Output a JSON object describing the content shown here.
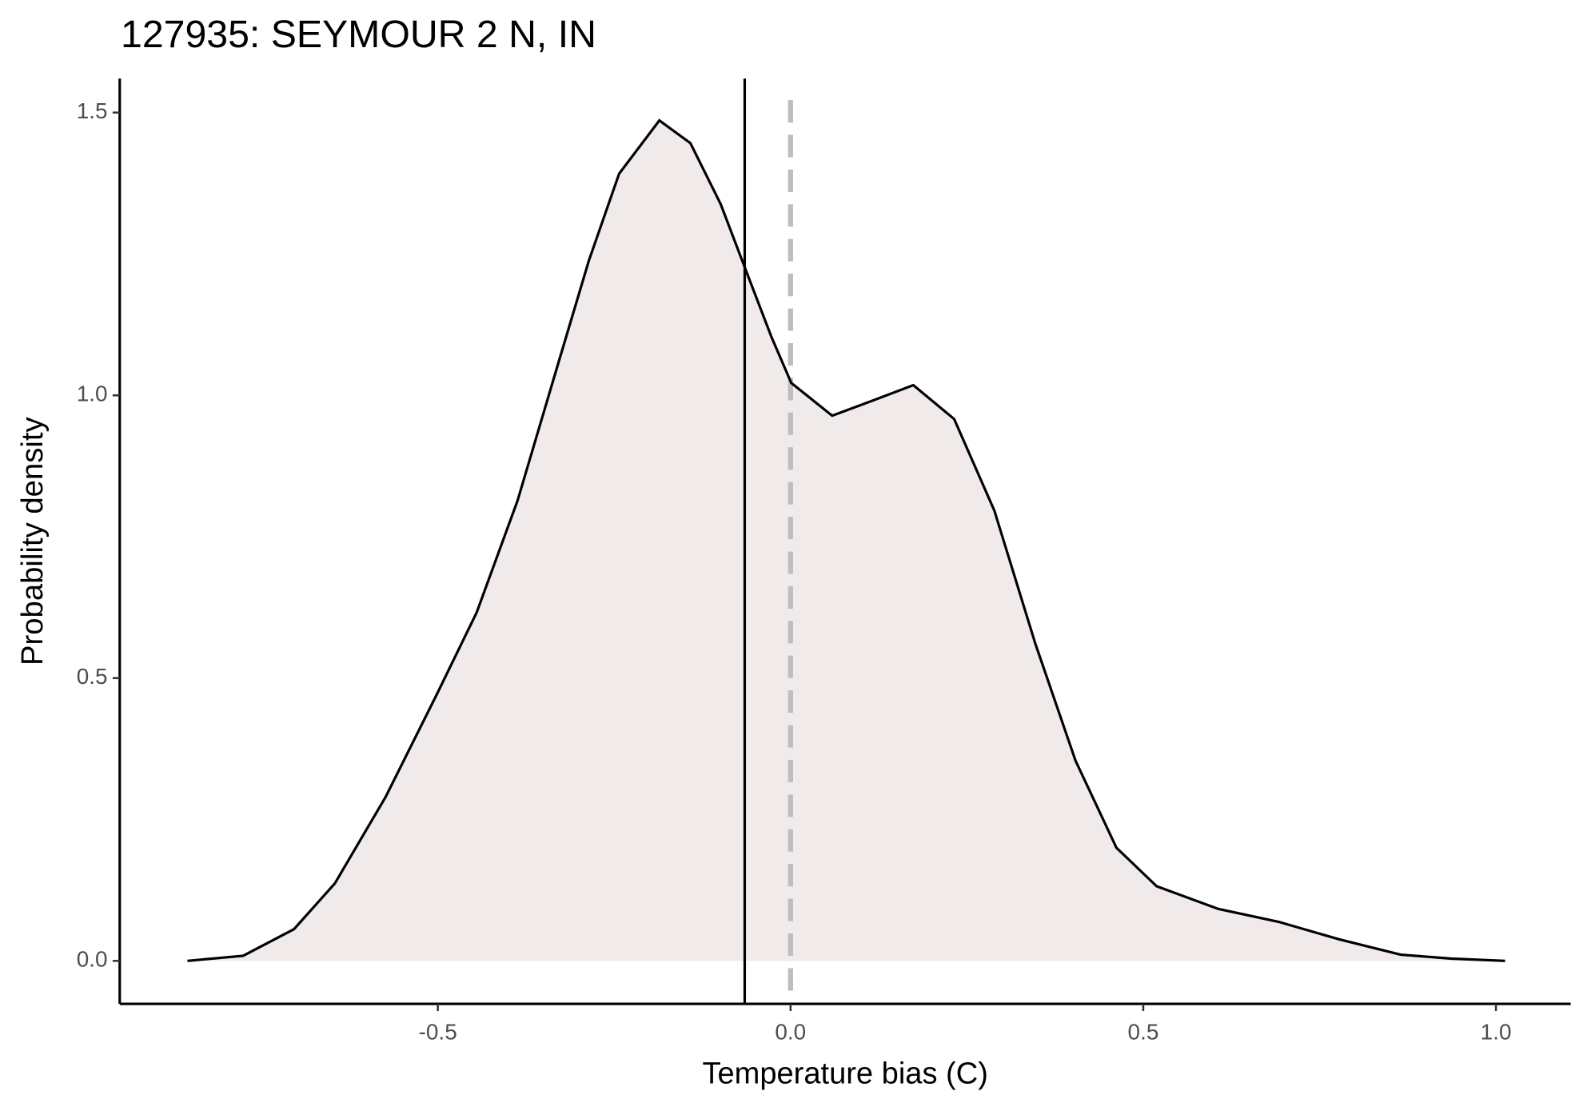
{
  "chart_data": {
    "type": "density",
    "title": "127935: SEYMOUR 2 N, IN",
    "x_label": "Temperature bias (C)",
    "y_label": "Probability density",
    "x": [
      -0.855,
      -0.776,
      -0.704,
      -0.646,
      -0.574,
      -0.502,
      -0.445,
      -0.387,
      -0.329,
      -0.286,
      -0.243,
      -0.186,
      -0.142,
      -0.099,
      -0.063,
      -0.027,
      0.001,
      0.059,
      0.117,
      0.174,
      0.232,
      0.289,
      0.347,
      0.404,
      0.462,
      0.519,
      0.606,
      0.692,
      0.778,
      0.865,
      0.937,
      1.013
    ],
    "values": [
      0,
      0.009,
      0.056,
      0.137,
      0.29,
      0.47,
      0.616,
      0.814,
      1.058,
      1.238,
      1.392,
      1.486,
      1.446,
      1.338,
      1.22,
      1.103,
      1.022,
      0.964,
      0.991,
      1.018,
      0.958,
      0.796,
      0.561,
      0.354,
      0.2,
      0.132,
      0.092,
      0.069,
      0.038,
      0.011,
      0.004,
      0
    ],
    "color": "#000000",
    "fill": "#f0eaea",
    "vlines": [
      {
        "value": -0.065,
        "color": "#000000",
        "dashed": false
      },
      {
        "value": 0,
        "color": "#bebebe",
        "dashed": true
      }
    ],
    "xlim": [
      -0.951,
      1.106
    ],
    "ylim": [
      -0.076,
      1.56
    ],
    "xticks": [
      {
        "value": -0.5,
        "label": "-0.5"
      },
      {
        "value": 0,
        "label": "0.0"
      },
      {
        "value": 0.5,
        "label": "0.5"
      },
      {
        "value": 1,
        "label": "1.0"
      }
    ],
    "yticks": [
      {
        "value": 0,
        "label": "0.0"
      },
      {
        "value": 0.5,
        "label": "0.5"
      },
      {
        "value": 1,
        "label": "1.0"
      },
      {
        "value": 1.5,
        "label": "1.5"
      }
    ],
    "grid": false
  }
}
